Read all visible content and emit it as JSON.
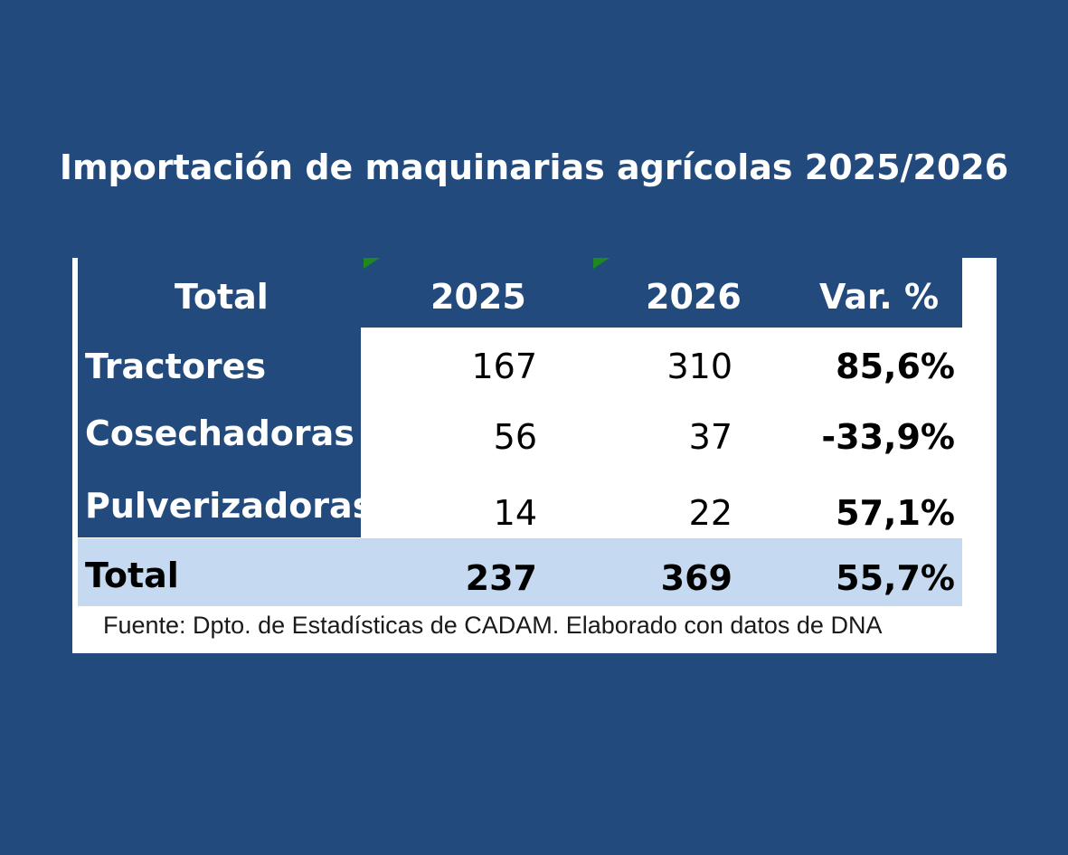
{
  "title": "Importación de maquinarias agrícolas 2025/2026",
  "colors": {
    "background": "#234a7c",
    "total_row": "#c5d9f1",
    "marker": "#1e8a1e"
  },
  "chart_data": {
    "type": "table",
    "columns": [
      "Total",
      "2025",
      "2026",
      "Var. %"
    ],
    "rows": [
      {
        "label": "Tractores",
        "v2025": "167",
        "v2026": "310",
        "var": "85,6%"
      },
      {
        "label": "Cosechadoras",
        "v2025": "56",
        "v2026": "37",
        "var": "-33,9%"
      },
      {
        "label": "Pulverizadoras",
        "v2025": "14",
        "v2026": "22",
        "var": "57,1%"
      }
    ],
    "total": {
      "label": "Total",
      "v2025": "237",
      "v2026": "369",
      "var": "55,7%"
    },
    "source": "Fuente: Dpto. de Estadísticas de CADAM. Elaborado con datos de DNA"
  }
}
